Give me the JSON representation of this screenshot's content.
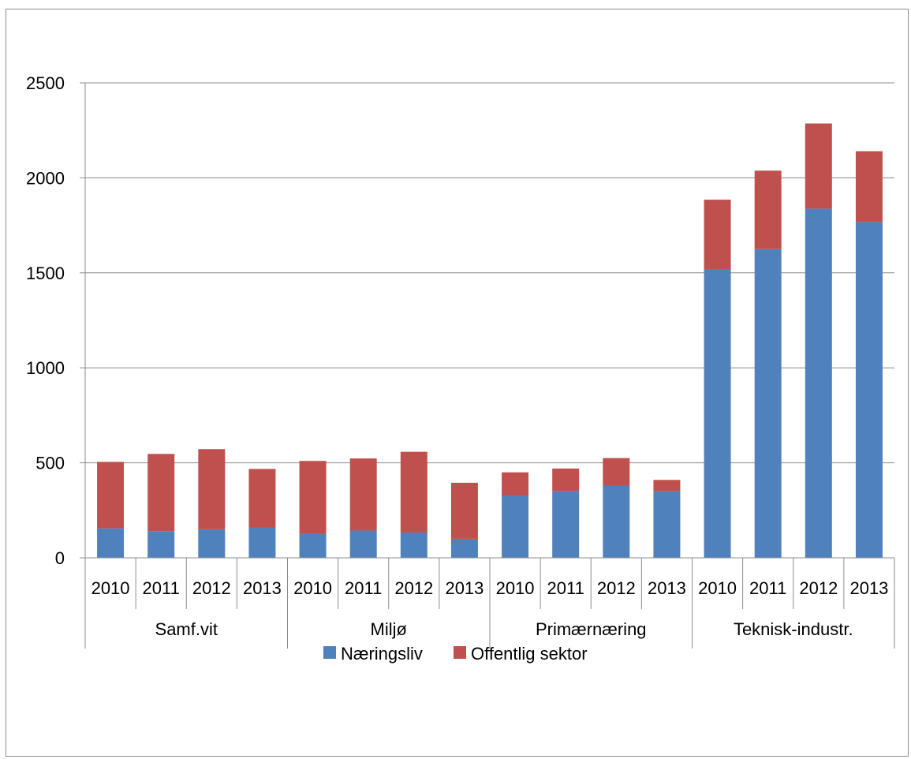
{
  "chart_data": {
    "type": "bar",
    "stacked": true,
    "groups": [
      "Samf.vit",
      "Miljø",
      "Primærnæring",
      "Teknisk-industr."
    ],
    "years": [
      "2010",
      "2011",
      "2012",
      "2013"
    ],
    "categories": [
      "2010",
      "2011",
      "2012",
      "2013",
      "2010",
      "2011",
      "2012",
      "2013",
      "2010",
      "2011",
      "2012",
      "2013",
      "2010",
      "2011",
      "2012",
      "2013"
    ],
    "series": [
      {
        "name": "Næringsliv",
        "color": "#4f81bd",
        "values": [
          155,
          140,
          150,
          158,
          125,
          143,
          133,
          100,
          328,
          352,
          380,
          350,
          1520,
          1625,
          1838,
          1768
        ]
      },
      {
        "name": "Offentlig sektor",
        "color": "#c0504d",
        "values": [
          350,
          407,
          422,
          310,
          385,
          380,
          425,
          295,
          122,
          118,
          145,
          60,
          365,
          413,
          448,
          372
        ]
      }
    ],
    "ylim": [
      0,
      2500
    ],
    "yticks": [
      0,
      500,
      1000,
      1500,
      2000,
      2500
    ],
    "grid": true,
    "legend": "bottom",
    "title": "",
    "xlabel": "",
    "ylabel": ""
  }
}
